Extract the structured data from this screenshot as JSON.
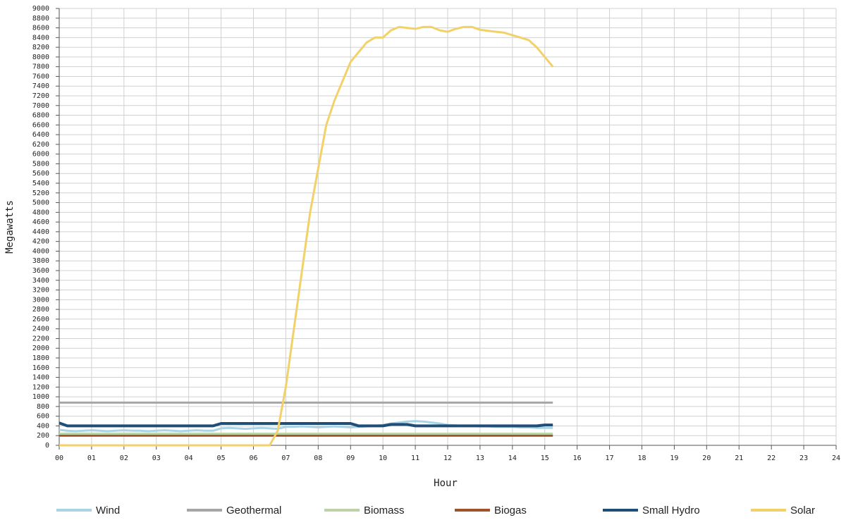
{
  "chart_data": {
    "type": "line",
    "y_label": "Megawatts",
    "x_label": "Hour",
    "x": [
      0,
      0.25,
      0.5,
      0.75,
      1,
      1.25,
      1.5,
      1.75,
      2,
      2.25,
      2.5,
      2.75,
      3,
      3.25,
      3.5,
      3.75,
      4,
      4.25,
      4.5,
      4.75,
      5,
      5.25,
      5.5,
      5.75,
      6,
      6.25,
      6.5,
      6.75,
      7,
      7.25,
      7.5,
      7.75,
      8,
      8.25,
      8.5,
      8.75,
      9,
      9.25,
      9.5,
      9.75,
      10,
      10.25,
      10.5,
      10.75,
      11,
      11.25,
      11.5,
      11.75,
      12,
      12.25,
      12.5,
      12.75,
      13,
      13.25,
      13.5,
      13.75,
      14,
      14.25,
      14.5,
      14.75,
      15,
      15.25
    ],
    "series": [
      {
        "name": "Wind",
        "color": "#a8d4e6",
        "values": [
          320,
          300,
          290,
          300,
          310,
          300,
          290,
          300,
          310,
          300,
          300,
          290,
          300,
          310,
          300,
          290,
          300,
          310,
          300,
          300,
          350,
          360,
          350,
          340,
          350,
          360,
          350,
          340,
          380,
          380,
          390,
          380,
          370,
          380,
          390,
          380,
          370,
          380,
          390,
          400,
          420,
          450,
          470,
          490,
          500,
          490,
          470,
          450,
          420,
          410,
          400,
          400,
          390,
          390,
          380,
          380,
          380,
          370,
          370,
          360,
          360,
          360
        ]
      },
      {
        "name": "Geothermal",
        "color": "#a6a6a6",
        "values": [
          880,
          880,
          880,
          880,
          880,
          880,
          880,
          880,
          880,
          880,
          880,
          880,
          880,
          880,
          880,
          880,
          880,
          880,
          880,
          880,
          880,
          880,
          880,
          880,
          880,
          880,
          880,
          880,
          880,
          880,
          880,
          880,
          880,
          880,
          880,
          880,
          880,
          880,
          880,
          880,
          880,
          880,
          880,
          880,
          880,
          880,
          880,
          880,
          880,
          880,
          880,
          880,
          880,
          880,
          880,
          880,
          880,
          880,
          880,
          880,
          880,
          880
        ]
      },
      {
        "name": "Biomass",
        "color": "#bcd3a8",
        "values": [
          240,
          240,
          240,
          240,
          240,
          240,
          240,
          240,
          240,
          240,
          240,
          240,
          240,
          240,
          240,
          240,
          240,
          240,
          240,
          240,
          240,
          240,
          240,
          240,
          240,
          240,
          240,
          240,
          240,
          240,
          240,
          240,
          240,
          240,
          240,
          240,
          240,
          240,
          240,
          240,
          240,
          240,
          240,
          240,
          240,
          240,
          240,
          240,
          240,
          240,
          240,
          240,
          240,
          240,
          240,
          240,
          240,
          240,
          240,
          240,
          240,
          240
        ]
      },
      {
        "name": "Biogas",
        "color": "#a0522d",
        "values": [
          200,
          200,
          200,
          200,
          200,
          200,
          200,
          200,
          200,
          200,
          200,
          200,
          200,
          200,
          200,
          200,
          200,
          200,
          200,
          200,
          200,
          200,
          200,
          200,
          200,
          200,
          200,
          200,
          200,
          200,
          200,
          200,
          200,
          200,
          200,
          200,
          200,
          200,
          200,
          200,
          200,
          200,
          200,
          200,
          200,
          200,
          200,
          200,
          200,
          200,
          200,
          200,
          200,
          200,
          200,
          200,
          200,
          200,
          200,
          200,
          200,
          200
        ]
      },
      {
        "name": "Small Hydro",
        "color": "#1f4e79",
        "values": [
          460,
          400,
          400,
          400,
          400,
          400,
          400,
          400,
          400,
          400,
          400,
          400,
          400,
          400,
          400,
          400,
          400,
          400,
          400,
          400,
          450,
          450,
          450,
          450,
          450,
          450,
          450,
          450,
          450,
          450,
          450,
          450,
          450,
          450,
          450,
          450,
          450,
          400,
          400,
          400,
          400,
          430,
          430,
          430,
          400,
          400,
          400,
          400,
          400,
          400,
          400,
          400,
          400,
          400,
          400,
          400,
          400,
          400,
          400,
          400,
          420,
          420
        ]
      },
      {
        "name": "Solar",
        "color": "#f2d268",
        "values": [
          0,
          0,
          0,
          0,
          0,
          0,
          0,
          0,
          0,
          0,
          0,
          0,
          0,
          0,
          0,
          0,
          0,
          0,
          0,
          0,
          0,
          0,
          0,
          0,
          0,
          0,
          0,
          300,
          1200,
          2400,
          3600,
          4800,
          5700,
          6600,
          7100,
          7500,
          7900,
          8100,
          8300,
          8400,
          8400,
          8550,
          8620,
          8600,
          8580,
          8620,
          8620,
          8550,
          8520,
          8580,
          8620,
          8620,
          8560,
          8540,
          8520,
          8500,
          8450,
          8400,
          8350,
          8200,
          8000,
          7800
        ]
      }
    ],
    "xlim": [
      0,
      24
    ],
    "xticks": [
      {
        "value": 0,
        "label": "00"
      },
      {
        "value": 1,
        "label": "01"
      },
      {
        "value": 2,
        "label": "02"
      },
      {
        "value": 3,
        "label": "03"
      },
      {
        "value": 4,
        "label": "04"
      },
      {
        "value": 5,
        "label": "05"
      },
      {
        "value": 6,
        "label": "06"
      },
      {
        "value": 7,
        "label": "07"
      },
      {
        "value": 8,
        "label": "08"
      },
      {
        "value": 9,
        "label": "09"
      },
      10,
      11,
      12,
      13,
      14,
      15,
      16,
      17,
      18,
      19,
      20,
      21,
      22,
      23,
      24
    ],
    "ylim": [
      0,
      9000
    ],
    "yticks": [
      0,
      200,
      400,
      600,
      800,
      1000,
      1200,
      1400,
      1600,
      1800,
      2000,
      2200,
      2400,
      2600,
      2800,
      3000,
      3200,
      3400,
      3600,
      3800,
      4000,
      4200,
      4400,
      4600,
      4800,
      5000,
      5200,
      5400,
      5600,
      5800,
      6000,
      6200,
      6400,
      6600,
      6800,
      7000,
      7200,
      7400,
      7600,
      7800,
      8000,
      8200,
      8400,
      8600,
      8800,
      9000
    ],
    "grid": true
  }
}
